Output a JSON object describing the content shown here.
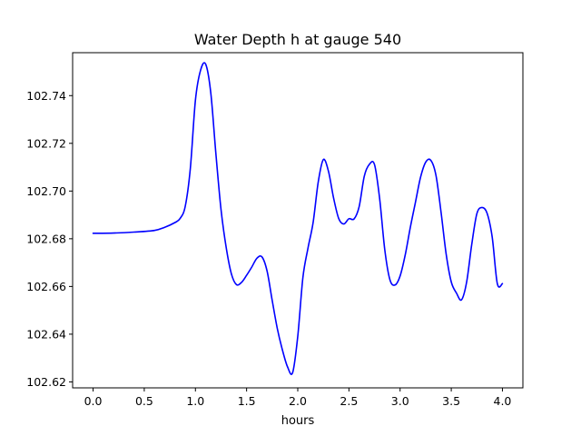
{
  "chart_data": {
    "type": "line",
    "title": "Water Depth h at gauge 540",
    "xlabel": "hours",
    "ylabel": "",
    "xlim": [
      -0.2,
      4.2
    ],
    "ylim": [
      102.6175,
      102.758
    ],
    "xticks": [
      0.0,
      0.5,
      1.0,
      1.5,
      2.0,
      2.5,
      3.0,
      3.5,
      4.0
    ],
    "xtick_labels": [
      "0.0",
      "0.5",
      "1.0",
      "1.5",
      "2.0",
      "2.5",
      "3.0",
      "3.5",
      "4.0"
    ],
    "yticks": [
      102.62,
      102.64,
      102.66,
      102.68,
      102.7,
      102.72,
      102.74
    ],
    "ytick_labels": [
      "102.62",
      "102.64",
      "102.66",
      "102.68",
      "102.70",
      "102.72",
      "102.74"
    ],
    "grid": false,
    "series": [
      {
        "color": "#0000ff",
        "x": [
          0.0,
          0.2,
          0.4,
          0.6,
          0.7,
          0.8,
          0.85,
          0.9,
          0.95,
          1.0,
          1.05,
          1.1,
          1.15,
          1.2,
          1.25,
          1.3,
          1.35,
          1.4,
          1.45,
          1.5,
          1.55,
          1.6,
          1.65,
          1.7,
          1.75,
          1.8,
          1.85,
          1.9,
          1.95,
          2.0,
          2.05,
          2.1,
          2.15,
          2.2,
          2.25,
          2.3,
          2.35,
          2.4,
          2.45,
          2.5,
          2.55,
          2.6,
          2.65,
          2.7,
          2.75,
          2.8,
          2.85,
          2.9,
          2.95,
          3.0,
          3.05,
          3.1,
          3.15,
          3.2,
          3.25,
          3.3,
          3.35,
          3.4,
          3.45,
          3.5,
          3.55,
          3.6,
          3.65,
          3.7,
          3.75,
          3.8,
          3.85,
          3.9,
          3.95,
          4.0
        ],
        "y": [
          102.6823,
          102.6824,
          102.6828,
          102.6835,
          102.6848,
          102.6868,
          102.6885,
          102.6935,
          102.7094,
          102.7381,
          102.7506,
          102.7532,
          102.7412,
          102.7156,
          102.6923,
          102.6765,
          102.6655,
          102.6608,
          102.6617,
          102.6647,
          102.6681,
          102.6718,
          102.6724,
          102.6665,
          102.6542,
          102.6424,
          102.6334,
          102.6263,
          102.6239,
          102.6391,
          102.6637,
          102.6761,
          102.6868,
          102.7038,
          102.7132,
          102.7083,
          102.6971,
          102.6885,
          102.6862,
          102.6884,
          102.6883,
          102.6935,
          102.7062,
          102.7112,
          102.7111,
          102.6969,
          102.6755,
          102.6629,
          102.6606,
          102.6644,
          102.6732,
          102.6848,
          102.6953,
          102.7058,
          102.7121,
          102.7129,
          102.7067,
          102.6912,
          102.6736,
          102.6619,
          102.6573,
          102.6544,
          102.6618,
          102.6776,
          102.6905,
          102.6931,
          102.6907,
          102.6807,
          102.6612,
          102.6612
        ]
      }
    ]
  }
}
